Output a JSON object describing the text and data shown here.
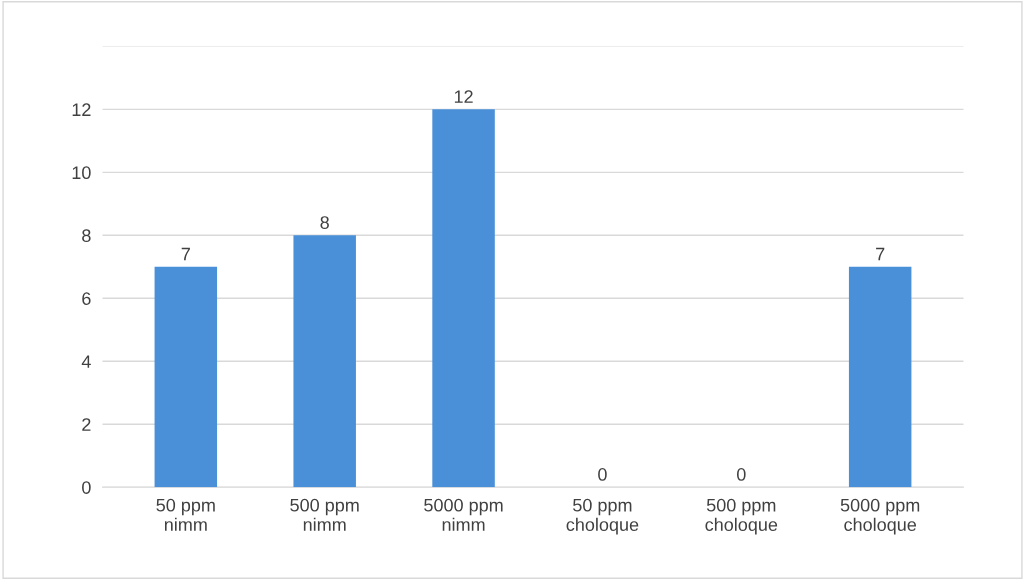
{
  "chart_data": {
    "type": "bar",
    "categories": [
      "50 ppm\nnimm",
      "500 ppm\nnimm",
      "5000 ppm\nnimm",
      "50 ppm\ncholoque",
      "500 ppm\ncholoque",
      "5000 ppm\ncholoque"
    ],
    "values": [
      7,
      8,
      12,
      0,
      0,
      7
    ],
    "color": "#4a90d9",
    "ylim": [
      0,
      14
    ],
    "yticks": [
      0,
      2,
      4,
      6,
      8,
      10,
      12,
      {
        "value": 14,
        "label": null
      }
    ],
    "grid": "y",
    "data_labels": true
  }
}
